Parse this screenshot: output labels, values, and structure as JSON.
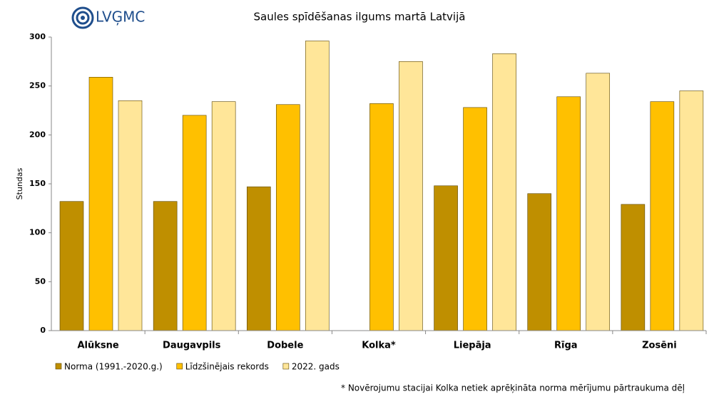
{
  "chart_data": {
    "type": "bar",
    "title": "Saules spīdēšanas ilgums martā Latvijā",
    "logo": "LVĢMC",
    "y_label": "Stundas",
    "categories": [
      "Alūksne",
      "Daugavpils",
      "Dobele",
      "Kolka*",
      "Liepāja",
      "Rīga",
      "Zosēni"
    ],
    "series": [
      {
        "name": "Norma (1991.-2020.g.)",
        "color": "#bf8f00",
        "values": [
          132,
          132,
          147,
          null,
          148,
          140,
          129
        ]
      },
      {
        "name": "Līdzšinējais rekords",
        "color": "#ffc000",
        "values": [
          259,
          220,
          231,
          232,
          228,
          239,
          234
        ]
      },
      {
        "name": "2022. gads",
        "color": "#ffe699",
        "values": [
          235,
          234,
          296,
          275,
          283,
          263,
          245
        ]
      }
    ],
    "ylim": [
      0,
      300
    ],
    "yticks": [
      0,
      50,
      100,
      150,
      200,
      250,
      300
    ],
    "grid": false,
    "footnote": "* Novērojumu stacijai Kolka netiek aprēķināta norma mērījumu pārtraukuma dēļ"
  }
}
